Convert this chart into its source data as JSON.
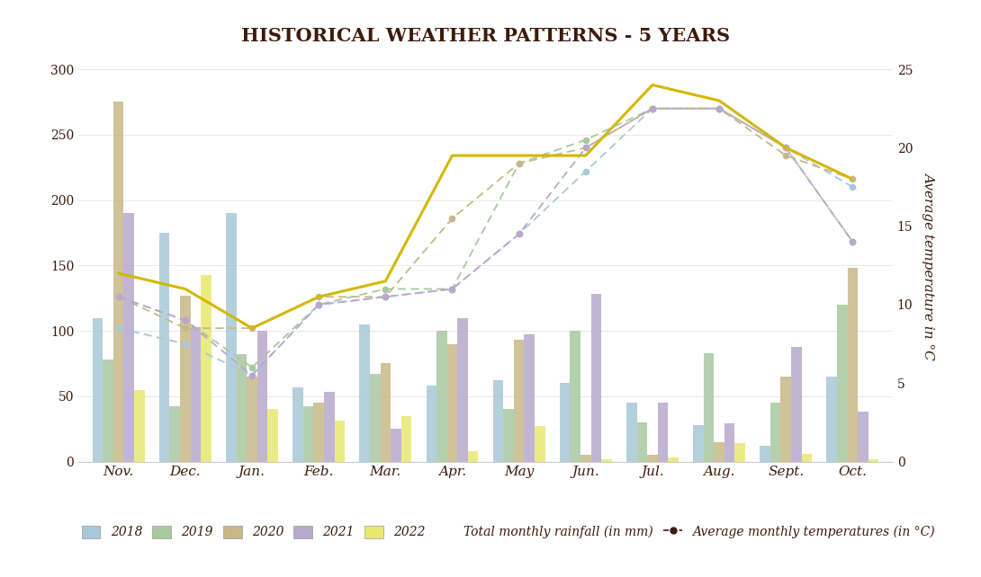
{
  "title": "HISTORICAL WEATHER PATTERNS - 5 YEARS",
  "months": [
    "Nov.",
    "Dec.",
    "Jan.",
    "Feb.",
    "Mar.",
    "Apr.",
    "May",
    "Jun.",
    "Jul.",
    "Aug.",
    "Sept.",
    "Oct."
  ],
  "years": [
    "2018",
    "2019",
    "2020",
    "2021",
    "2022"
  ],
  "bar_colors": [
    "#a8c8d8",
    "#a8c8a0",
    "#c8b887",
    "#b8a8cc",
    "#e8e870"
  ],
  "rainfall": {
    "2018": [
      110,
      175,
      190,
      57,
      105,
      58,
      62,
      60,
      45,
      28,
      12,
      65
    ],
    "2019": [
      78,
      42,
      82,
      42,
      67,
      100,
      40,
      100,
      30,
      83,
      45,
      120
    ],
    "2020": [
      275,
      127,
      65,
      45,
      75,
      90,
      93,
      5,
      5,
      15,
      65,
      148
    ],
    "2021": [
      190,
      103,
      100,
      53,
      25,
      110,
      97,
      128,
      45,
      29,
      88,
      38
    ],
    "2022": [
      55,
      143,
      40,
      31,
      35,
      8,
      27,
      2,
      3,
      14,
      6,
      2
    ]
  },
  "temperatures": {
    "2018": [
      8.5,
      7.5,
      5.5,
      10.0,
      10.5,
      11.0,
      14.5,
      18.5,
      22.5,
      22.5,
      20.0,
      17.5
    ],
    "2019": [
      10.5,
      9.0,
      6.0,
      10.0,
      11.0,
      11.0,
      19.0,
      20.5,
      22.5,
      22.5,
      20.0,
      14.0
    ],
    "2020": [
      10.5,
      8.5,
      8.5,
      10.5,
      10.5,
      15.5,
      19.0,
      20.0,
      22.5,
      22.5,
      19.5,
      18.0
    ],
    "2021": [
      10.5,
      9.0,
      5.5,
      10.0,
      10.5,
      11.0,
      14.5,
      20.0,
      22.5,
      22.5,
      20.0,
      14.0
    ],
    "2022": [
      12.0,
      11.0,
      8.5,
      10.5,
      11.5,
      19.5,
      19.5,
      19.5,
      24.0,
      23.0,
      20.0,
      18.0
    ]
  },
  "temp_line_colors": {
    "2018": "#a8c8d8",
    "2019": "#a8c8a0",
    "2020": "#c8b887",
    "2021": "#b8a8cc",
    "2022": "#d4b800"
  },
  "ylabel_right": "Average temperature in °C",
  "ylim_left": [
    0,
    300
  ],
  "ylim_right": [
    0,
    25
  ],
  "background_color": "#ffffff",
  "text_color": "#3d1a0a",
  "legend_rainfall": "Total monthly rainfall (in mm)",
  "legend_temp": "Average monthly temperatures (in °C)"
}
